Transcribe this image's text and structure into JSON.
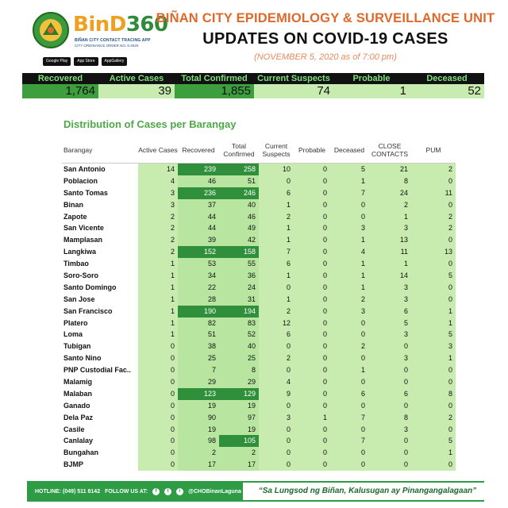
{
  "header": {
    "app_name_a": "BinD",
    "app_name_b": "360",
    "app_sub1": "BIÑAN CITY CONTACT TRACING APP",
    "app_sub2": "CITY ORDINANCE ORDER NO. 6-2020",
    "stores": [
      "Google Play",
      "App Store",
      "AppGallery"
    ],
    "unit_title": "BIÑAN CITY EPIDEMIOLOGY & SURVEILLANCE UNIT",
    "updates_title": "UPDATES ON COVID-19 CASES",
    "date_line": "(NOVEMBER 5, 2020 as of 7:00 pm)"
  },
  "summary": {
    "headers": [
      "Recovered",
      "Active Cases",
      "Total Confirmed",
      "Current Suspects",
      "Probable",
      "Deceased"
    ],
    "values": [
      "1,764",
      "39",
      "1,855",
      "74",
      "1",
      "52"
    ]
  },
  "distribution": {
    "title": "Distribution of Cases per Barangay",
    "columns": [
      "Barangay",
      "Active Cases",
      "Recovered",
      "Total Confirmed",
      "Current Suspects",
      "Probable",
      "Deceased",
      "CLOSE CONTACTS",
      "PUM"
    ],
    "rows": [
      [
        "San Antonio",
        "14",
        "239",
        "258",
        "10",
        "0",
        "5",
        "21",
        "2"
      ],
      [
        "Poblacion",
        "4",
        "46",
        "51",
        "0",
        "0",
        "1",
        "8",
        "0"
      ],
      [
        "Santo Tomas",
        "3",
        "236",
        "246",
        "6",
        "0",
        "7",
        "24",
        "11"
      ],
      [
        "Binan",
        "3",
        "37",
        "40",
        "1",
        "0",
        "0",
        "2",
        "0"
      ],
      [
        "Zapote",
        "2",
        "44",
        "46",
        "2",
        "0",
        "0",
        "1",
        "2"
      ],
      [
        "San Vicente",
        "2",
        "44",
        "49",
        "1",
        "0",
        "3",
        "3",
        "2"
      ],
      [
        "Mamplasan",
        "2",
        "39",
        "42",
        "1",
        "0",
        "1",
        "13",
        "0"
      ],
      [
        "Langkiwa",
        "2",
        "152",
        "158",
        "7",
        "0",
        "4",
        "11",
        "13"
      ],
      [
        "Timbao",
        "1",
        "53",
        "55",
        "6",
        "0",
        "1",
        "1",
        "0"
      ],
      [
        "Soro-Soro",
        "1",
        "34",
        "36",
        "1",
        "0",
        "1",
        "14",
        "5"
      ],
      [
        "Santo Domingo",
        "1",
        "22",
        "24",
        "0",
        "0",
        "1",
        "3",
        "0"
      ],
      [
        "San Jose",
        "1",
        "28",
        "31",
        "1",
        "0",
        "2",
        "3",
        "0"
      ],
      [
        "San Francisco",
        "1",
        "190",
        "194",
        "2",
        "0",
        "3",
        "6",
        "1"
      ],
      [
        "Platero",
        "1",
        "82",
        "83",
        "12",
        "0",
        "0",
        "5",
        "1"
      ],
      [
        "Loma",
        "1",
        "51",
        "52",
        "6",
        "0",
        "0",
        "3",
        "5"
      ],
      [
        "Tubigan",
        "0",
        "38",
        "40",
        "0",
        "0",
        "2",
        "0",
        "3"
      ],
      [
        "Santo Nino",
        "0",
        "25",
        "25",
        "2",
        "0",
        "0",
        "3",
        "1"
      ],
      [
        "PNP Custodial Fac..",
        "0",
        "7",
        "8",
        "0",
        "0",
        "1",
        "0",
        "0"
      ],
      [
        "Malamig",
        "0",
        "29",
        "29",
        "4",
        "0",
        "0",
        "0",
        "0"
      ],
      [
        "Malaban",
        "0",
        "123",
        "129",
        "9",
        "0",
        "6",
        "6",
        "8"
      ],
      [
        "Ganado",
        "0",
        "19",
        "19",
        "0",
        "0",
        "0",
        "0",
        "0"
      ],
      [
        "Dela Paz",
        "0",
        "90",
        "97",
        "3",
        "1",
        "7",
        "8",
        "2"
      ],
      [
        "Casile",
        "0",
        "19",
        "19",
        "0",
        "0",
        "0",
        "3",
        "0"
      ],
      [
        "Canlalay",
        "0",
        "98",
        "105",
        "0",
        "0",
        "7",
        "0",
        "5"
      ],
      [
        "Bungahan",
        "0",
        "2",
        "2",
        "0",
        "0",
        "0",
        "0",
        "1"
      ],
      [
        "BJMP",
        "0",
        "17",
        "17",
        "0",
        "0",
        "0",
        "0",
        "0"
      ]
    ]
  },
  "footer": {
    "hotline": "HOTLINE: (049) 511 8142",
    "follow": "FOLLOW US AT:",
    "handle": "@CHOBinanLaguna",
    "slogan": "“Sa Lungsod ng Biñan, Kalusugan ay Pinangangalagaan”"
  },
  "colors": {
    "orange": "#e0692a",
    "green": "#2e9c45",
    "light_green": "#c8ecb0",
    "dark_green": "#2f8f3a"
  }
}
